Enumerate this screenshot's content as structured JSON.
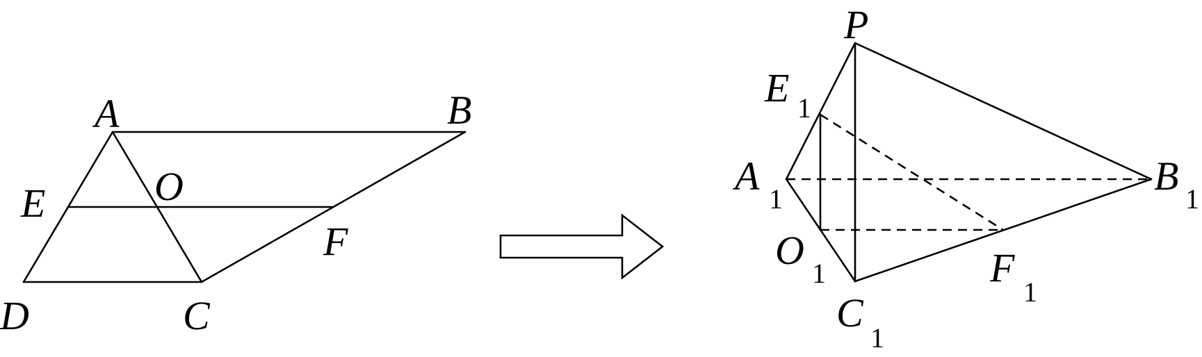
{
  "left_figure": {
    "labels": {
      "A": "A",
      "B": "B",
      "C": "C",
      "D": "D",
      "E": "E",
      "F": "F",
      "O": "O"
    }
  },
  "right_figure": {
    "labels": {
      "P": "P",
      "E1": "E",
      "E1_sub": "1",
      "A1": "A",
      "A1_sub": "1",
      "O1": "O",
      "O1_sub": "1",
      "C1": "C",
      "C1_sub": "1",
      "F1": "F",
      "F1_sub": "1",
      "B1": "B",
      "B1_sub": "1"
    }
  },
  "transform_arrow": {
    "icon": "right-arrow-icon"
  }
}
